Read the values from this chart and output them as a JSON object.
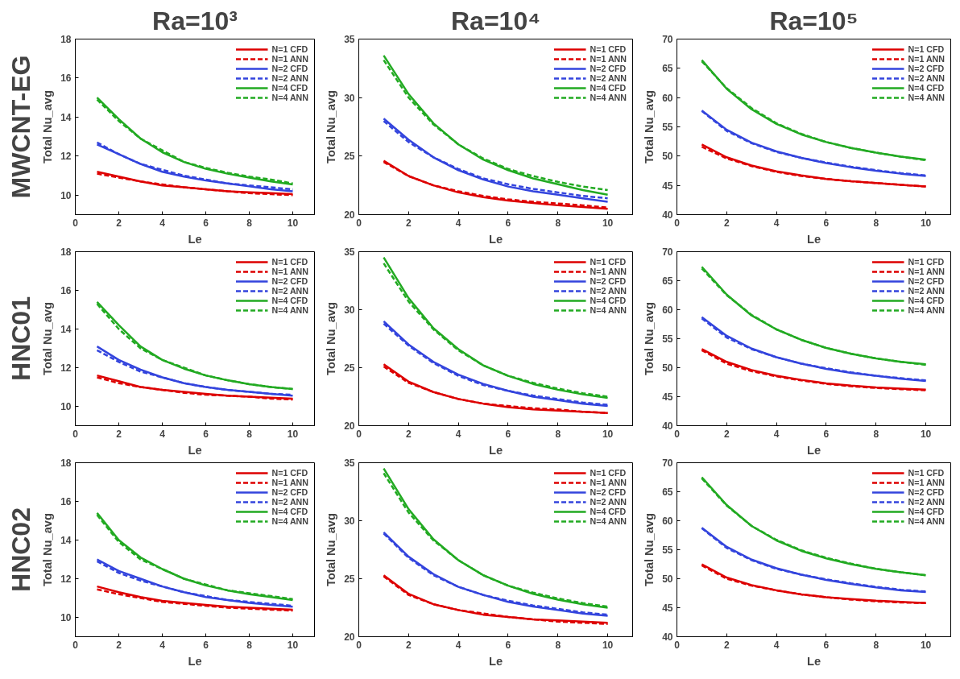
{
  "chart_data": [
    {
      "type": "line",
      "title": "Ra=10³",
      "annotations": [
        "MWCNT-EG"
      ],
      "xlabel": "Le",
      "ylabel": "Total Nu_avg",
      "x": [
        1,
        2,
        3,
        4,
        5,
        6,
        7,
        8,
        9,
        10
      ],
      "xlim": [
        0,
        11
      ],
      "xticks": [
        0,
        2,
        4,
        6,
        8,
        10
      ],
      "ylim": [
        9,
        18
      ],
      "yticks": [
        10,
        12,
        14,
        16,
        18
      ],
      "grid": false,
      "legend": "top right",
      "marker": "none",
      "series": [
        {
          "name": "N=1 CFD",
          "color": "#dd0000",
          "line_style": "solid",
          "values": [
            11.2,
            10.95,
            10.7,
            10.5,
            10.4,
            10.3,
            10.2,
            10.15,
            10.1,
            10.05
          ]
        },
        {
          "name": "N=1 ANN",
          "color": "#dd0000",
          "line_style": "dashed",
          "values": [
            11.1,
            10.9,
            10.7,
            10.55,
            10.4,
            10.3,
            10.2,
            10.1,
            10.05,
            10.0
          ]
        },
        {
          "name": "N=2 CFD",
          "color": "#3344dd",
          "line_style": "solid",
          "values": [
            12.6,
            12.1,
            11.6,
            11.2,
            10.95,
            10.75,
            10.6,
            10.45,
            10.3,
            10.2
          ]
        },
        {
          "name": "N=2 ANN",
          "color": "#3344dd",
          "line_style": "dashed",
          "values": [
            12.7,
            12.1,
            11.6,
            11.3,
            11.0,
            10.8,
            10.6,
            10.5,
            10.4,
            10.3
          ]
        },
        {
          "name": "N=4 CFD",
          "color": "#22aa22",
          "line_style": "solid",
          "values": [
            15.0,
            13.9,
            12.9,
            12.2,
            11.7,
            11.35,
            11.1,
            10.9,
            10.7,
            10.55
          ]
        },
        {
          "name": "N=4 ANN",
          "color": "#22aa22",
          "line_style": "dashed",
          "values": [
            14.9,
            13.8,
            12.9,
            12.3,
            11.7,
            11.4,
            11.15,
            10.95,
            10.8,
            10.6
          ]
        }
      ]
    },
    {
      "type": "line",
      "title": "Ra=10⁴",
      "xlabel": "Le",
      "ylabel": "Total Nu_avg",
      "x": [
        1,
        2,
        3,
        4,
        5,
        6,
        7,
        8,
        9,
        10
      ],
      "xlim": [
        0,
        11
      ],
      "xticks": [
        0,
        2,
        4,
        6,
        8,
        10
      ],
      "ylim": [
        20,
        35
      ],
      "yticks": [
        20,
        25,
        30,
        35
      ],
      "grid": false,
      "legend": "top right",
      "marker": "none",
      "series": [
        {
          "name": "N=1 CFD",
          "color": "#dd0000",
          "line_style": "solid",
          "values": [
            24.6,
            23.3,
            22.5,
            21.9,
            21.5,
            21.2,
            21.0,
            20.8,
            20.65,
            20.5
          ]
        },
        {
          "name": "N=1 ANN",
          "color": "#dd0000",
          "line_style": "dashed",
          "values": [
            24.5,
            23.3,
            22.5,
            22.0,
            21.6,
            21.3,
            21.1,
            20.95,
            20.8,
            20.6
          ]
        },
        {
          "name": "N=2 CFD",
          "color": "#3344dd",
          "line_style": "solid",
          "values": [
            28.2,
            26.4,
            24.9,
            23.8,
            23.0,
            22.4,
            22.0,
            21.7,
            21.4,
            21.1
          ]
        },
        {
          "name": "N=2 ANN",
          "color": "#3344dd",
          "line_style": "dashed",
          "values": [
            28.0,
            26.2,
            24.9,
            23.9,
            23.1,
            22.6,
            22.2,
            21.9,
            21.6,
            21.4
          ]
        },
        {
          "name": "N=4 CFD",
          "color": "#22aa22",
          "line_style": "solid",
          "values": [
            33.6,
            30.3,
            27.8,
            26.0,
            24.7,
            23.8,
            23.1,
            22.6,
            22.1,
            21.7
          ]
        },
        {
          "name": "N=4 ANN",
          "color": "#22aa22",
          "line_style": "dashed",
          "values": [
            33.2,
            30.0,
            27.7,
            26.0,
            24.8,
            23.9,
            23.3,
            22.8,
            22.4,
            22.1
          ]
        }
      ]
    },
    {
      "type": "line",
      "title": "Ra=10⁵",
      "xlabel": "Le",
      "ylabel": "Total Nu_avg",
      "x": [
        1,
        2,
        3,
        4,
        5,
        6,
        7,
        8,
        9,
        10
      ],
      "xlim": [
        0,
        11
      ],
      "xticks": [
        0,
        2,
        4,
        6,
        8,
        10
      ],
      "ylim": [
        40,
        70
      ],
      "yticks": [
        40,
        45,
        50,
        55,
        60,
        65,
        70
      ],
      "grid": false,
      "legend": "top right",
      "marker": "none",
      "series": [
        {
          "name": "N=1 CFD",
          "color": "#dd0000",
          "line_style": "solid",
          "values": [
            52.0,
            49.8,
            48.4,
            47.4,
            46.7,
            46.1,
            45.7,
            45.4,
            45.1,
            44.8
          ]
        },
        {
          "name": "N=1 ANN",
          "color": "#dd0000",
          "line_style": "dashed",
          "values": [
            51.6,
            49.6,
            48.3,
            47.3,
            46.6,
            46.1,
            45.7,
            45.4,
            45.1,
            44.8
          ]
        },
        {
          "name": "N=2 CFD",
          "color": "#3344dd",
          "line_style": "solid",
          "values": [
            57.8,
            54.5,
            52.3,
            50.8,
            49.7,
            48.8,
            48.1,
            47.5,
            47.0,
            46.6
          ]
        },
        {
          "name": "N=2 ANN",
          "color": "#3344dd",
          "line_style": "dashed",
          "values": [
            57.7,
            54.3,
            52.2,
            50.7,
            49.7,
            48.9,
            48.2,
            47.6,
            47.1,
            46.7
          ]
        },
        {
          "name": "N=4 CFD",
          "color": "#22aa22",
          "line_style": "solid",
          "values": [
            66.4,
            61.5,
            58.0,
            55.5,
            53.7,
            52.4,
            51.4,
            50.6,
            49.9,
            49.4
          ]
        },
        {
          "name": "N=4 ANN",
          "color": "#22aa22",
          "line_style": "dashed",
          "values": [
            66.2,
            61.6,
            58.2,
            55.6,
            53.8,
            52.4,
            51.4,
            50.6,
            49.9,
            49.3
          ]
        }
      ]
    },
    {
      "type": "line",
      "annotations": [
        "HNC01"
      ],
      "xlabel": "Le",
      "ylabel": "Total Nu_avg",
      "x": [
        1,
        2,
        3,
        4,
        5,
        6,
        7,
        8,
        9,
        10
      ],
      "xlim": [
        0,
        11
      ],
      "xticks": [
        0,
        2,
        4,
        6,
        8,
        10
      ],
      "ylim": [
        9,
        18
      ],
      "yticks": [
        10,
        12,
        14,
        16,
        18
      ],
      "grid": false,
      "legend": "top right",
      "marker": "none",
      "series": [
        {
          "name": "N=1 CFD",
          "color": "#dd0000",
          "line_style": "solid",
          "values": [
            11.6,
            11.3,
            11.0,
            10.85,
            10.75,
            10.65,
            10.55,
            10.5,
            10.45,
            10.4
          ]
        },
        {
          "name": "N=1 ANN",
          "color": "#dd0000",
          "line_style": "dashed",
          "values": [
            11.5,
            11.2,
            11.0,
            10.85,
            10.7,
            10.6,
            10.55,
            10.5,
            10.4,
            10.35
          ]
        },
        {
          "name": "N=2 CFD",
          "color": "#3344dd",
          "line_style": "solid",
          "values": [
            13.1,
            12.4,
            11.9,
            11.5,
            11.2,
            11.0,
            10.85,
            10.75,
            10.65,
            10.55
          ]
        },
        {
          "name": "N=2 ANN",
          "color": "#3344dd",
          "line_style": "dashed",
          "values": [
            12.9,
            12.3,
            11.8,
            11.5,
            11.2,
            11.0,
            10.85,
            10.75,
            10.65,
            10.6
          ]
        },
        {
          "name": "N=4 CFD",
          "color": "#22aa22",
          "line_style": "solid",
          "values": [
            15.4,
            14.2,
            13.1,
            12.4,
            11.95,
            11.6,
            11.35,
            11.15,
            11.0,
            10.9
          ]
        },
        {
          "name": "N=4 ANN",
          "color": "#22aa22",
          "line_style": "dashed",
          "values": [
            15.3,
            14.0,
            13.0,
            12.4,
            12.0,
            11.6,
            11.35,
            11.15,
            11.0,
            10.9
          ]
        }
      ]
    },
    {
      "type": "line",
      "xlabel": "Le",
      "ylabel": "Total Nu_avg",
      "x": [
        1,
        2,
        3,
        4,
        5,
        6,
        7,
        8,
        9,
        10
      ],
      "xlim": [
        0,
        11
      ],
      "xticks": [
        0,
        2,
        4,
        6,
        8,
        10
      ],
      "ylim": [
        20,
        35
      ],
      "yticks": [
        20,
        25,
        30,
        35
      ],
      "grid": false,
      "legend": "top right",
      "marker": "none",
      "series": [
        {
          "name": "N=1 CFD",
          "color": "#dd0000",
          "line_style": "solid",
          "values": [
            25.3,
            23.8,
            22.9,
            22.3,
            21.9,
            21.6,
            21.4,
            21.3,
            21.2,
            21.1
          ]
        },
        {
          "name": "N=1 ANN",
          "color": "#dd0000",
          "line_style": "dashed",
          "values": [
            25.1,
            23.7,
            22.9,
            22.3,
            21.9,
            21.7,
            21.5,
            21.4,
            21.2,
            21.1
          ]
        },
        {
          "name": "N=2 CFD",
          "color": "#3344dd",
          "line_style": "solid",
          "values": [
            29.0,
            27.0,
            25.5,
            24.4,
            23.6,
            23.0,
            22.5,
            22.2,
            21.9,
            21.7
          ]
        },
        {
          "name": "N=2 ANN",
          "color": "#3344dd",
          "line_style": "dashed",
          "values": [
            28.8,
            26.9,
            25.4,
            24.3,
            23.5,
            23.0,
            22.6,
            22.3,
            22.0,
            21.8
          ]
        },
        {
          "name": "N=4 CFD",
          "color": "#22aa22",
          "line_style": "solid",
          "values": [
            34.5,
            31.0,
            28.4,
            26.6,
            25.2,
            24.3,
            23.6,
            23.1,
            22.7,
            22.4
          ]
        },
        {
          "name": "N=4 ANN",
          "color": "#22aa22",
          "line_style": "dashed",
          "values": [
            34.0,
            30.7,
            28.3,
            26.5,
            25.2,
            24.3,
            23.7,
            23.2,
            22.8,
            22.5
          ]
        }
      ]
    },
    {
      "type": "line",
      "xlabel": "Le",
      "ylabel": "Total Nu_avg",
      "x": [
        1,
        2,
        3,
        4,
        5,
        6,
        7,
        8,
        9,
        10
      ],
      "xlim": [
        0,
        11
      ],
      "xticks": [
        0,
        2,
        4,
        6,
        8,
        10
      ],
      "ylim": [
        40,
        70
      ],
      "yticks": [
        40,
        45,
        50,
        55,
        60,
        65,
        70
      ],
      "grid": false,
      "legend": "top right",
      "marker": "none",
      "series": [
        {
          "name": "N=1 CFD",
          "color": "#dd0000",
          "line_style": "solid",
          "values": [
            53.2,
            51.0,
            49.6,
            48.6,
            47.9,
            47.3,
            46.9,
            46.6,
            46.4,
            46.2
          ]
        },
        {
          "name": "N=1 ANN",
          "color": "#dd0000",
          "line_style": "dashed",
          "values": [
            53.0,
            50.7,
            49.4,
            48.5,
            47.8,
            47.2,
            46.8,
            46.5,
            46.3,
            46.1
          ]
        },
        {
          "name": "N=2 CFD",
          "color": "#3344dd",
          "line_style": "solid",
          "values": [
            58.7,
            55.5,
            53.3,
            51.8,
            50.7,
            49.8,
            49.1,
            48.6,
            48.1,
            47.7
          ]
        },
        {
          "name": "N=2 ANN",
          "color": "#3344dd",
          "line_style": "dashed",
          "values": [
            58.5,
            55.2,
            53.2,
            51.8,
            50.7,
            49.9,
            49.2,
            48.6,
            48.2,
            47.8
          ]
        },
        {
          "name": "N=4 CFD",
          "color": "#22aa22",
          "line_style": "solid",
          "values": [
            67.4,
            62.6,
            59.0,
            56.6,
            54.8,
            53.4,
            52.4,
            51.6,
            51.0,
            50.6
          ]
        },
        {
          "name": "N=4 ANN",
          "color": "#22aa22",
          "line_style": "dashed",
          "values": [
            67.1,
            62.5,
            59.1,
            56.6,
            54.8,
            53.4,
            52.4,
            51.6,
            51.0,
            50.5
          ]
        }
      ]
    },
    {
      "type": "line",
      "annotations": [
        "HNC02"
      ],
      "xlabel": "Le",
      "ylabel": "Total Nu_avg",
      "x": [
        1,
        2,
        3,
        4,
        5,
        6,
        7,
        8,
        9,
        10
      ],
      "xlim": [
        0,
        11
      ],
      "xticks": [
        0,
        2,
        4,
        6,
        8,
        10
      ],
      "ylim": [
        9,
        18
      ],
      "yticks": [
        10,
        12,
        14,
        16,
        18
      ],
      "grid": false,
      "legend": "top right",
      "marker": "none",
      "series": [
        {
          "name": "N=1 CFD",
          "color": "#dd0000",
          "line_style": "solid",
          "values": [
            11.6,
            11.3,
            11.05,
            10.85,
            10.75,
            10.65,
            10.55,
            10.5,
            10.45,
            10.4
          ]
        },
        {
          "name": "N=1 ANN",
          "color": "#dd0000",
          "line_style": "dashed",
          "values": [
            11.45,
            11.2,
            11.0,
            10.8,
            10.7,
            10.6,
            10.5,
            10.45,
            10.4,
            10.35
          ]
        },
        {
          "name": "N=2 CFD",
          "color": "#3344dd",
          "line_style": "solid",
          "values": [
            13.0,
            12.4,
            12.0,
            11.6,
            11.3,
            11.05,
            10.9,
            10.75,
            10.65,
            10.55
          ]
        },
        {
          "name": "N=2 ANN",
          "color": "#3344dd",
          "line_style": "dashed",
          "values": [
            12.9,
            12.3,
            11.9,
            11.6,
            11.3,
            11.1,
            10.9,
            10.8,
            10.7,
            10.6
          ]
        },
        {
          "name": "N=4 CFD",
          "color": "#22aa22",
          "line_style": "solid",
          "values": [
            15.4,
            14.0,
            13.1,
            12.5,
            12.0,
            11.65,
            11.4,
            11.2,
            11.05,
            10.9
          ]
        },
        {
          "name": "N=4 ANN",
          "color": "#22aa22",
          "line_style": "dashed",
          "values": [
            15.3,
            13.9,
            13.0,
            12.5,
            12.0,
            11.7,
            11.4,
            11.25,
            11.1,
            10.95
          ]
        }
      ]
    },
    {
      "type": "line",
      "xlabel": "Le",
      "ylabel": "Total Nu_avg",
      "x": [
        1,
        2,
        3,
        4,
        5,
        6,
        7,
        8,
        9,
        10
      ],
      "xlim": [
        0,
        11
      ],
      "xticks": [
        0,
        2,
        4,
        6,
        8,
        10
      ],
      "ylim": [
        20,
        35
      ],
      "yticks": [
        20,
        25,
        30,
        35
      ],
      "grid": false,
      "legend": "top right",
      "marker": "none",
      "series": [
        {
          "name": "N=1 CFD",
          "color": "#dd0000",
          "line_style": "solid",
          "values": [
            25.3,
            23.7,
            22.8,
            22.3,
            21.9,
            21.7,
            21.5,
            21.4,
            21.3,
            21.2
          ]
        },
        {
          "name": "N=1 ANN",
          "color": "#dd0000",
          "line_style": "dashed",
          "values": [
            25.2,
            23.6,
            22.8,
            22.3,
            22.0,
            21.7,
            21.5,
            21.3,
            21.2,
            21.1
          ]
        },
        {
          "name": "N=2 CFD",
          "color": "#3344dd",
          "line_style": "solid",
          "values": [
            29.0,
            26.9,
            25.4,
            24.3,
            23.6,
            23.0,
            22.6,
            22.3,
            22.0,
            21.8
          ]
        },
        {
          "name": "N=2 ANN",
          "color": "#3344dd",
          "line_style": "dashed",
          "values": [
            28.9,
            26.8,
            25.3,
            24.3,
            23.6,
            23.1,
            22.7,
            22.4,
            22.1,
            21.9
          ]
        },
        {
          "name": "N=4 CFD",
          "color": "#22aa22",
          "line_style": "solid",
          "values": [
            34.5,
            31.0,
            28.4,
            26.6,
            25.3,
            24.4,
            23.7,
            23.2,
            22.8,
            22.5
          ]
        },
        {
          "name": "N=4 ANN",
          "color": "#22aa22",
          "line_style": "dashed",
          "values": [
            34.1,
            30.7,
            28.3,
            26.6,
            25.3,
            24.4,
            23.8,
            23.3,
            22.9,
            22.6
          ]
        }
      ]
    },
    {
      "type": "line",
      "xlabel": "Le",
      "ylabel": "Total Nu_avg",
      "x": [
        1,
        2,
        3,
        4,
        5,
        6,
        7,
        8,
        9,
        10
      ],
      "xlim": [
        0,
        11
      ],
      "xticks": [
        0,
        2,
        4,
        6,
        8,
        10
      ],
      "ylim": [
        40,
        70
      ],
      "yticks": [
        40,
        45,
        50,
        55,
        60,
        65,
        70
      ],
      "grid": false,
      "legend": "top right",
      "marker": "none",
      "series": [
        {
          "name": "N=1 CFD",
          "color": "#dd0000",
          "line_style": "solid",
          "values": [
            52.5,
            50.2,
            48.9,
            48.0,
            47.3,
            46.8,
            46.5,
            46.2,
            46.0,
            45.8
          ]
        },
        {
          "name": "N=1 ANN",
          "color": "#dd0000",
          "line_style": "dashed",
          "values": [
            52.3,
            50.0,
            48.8,
            48.0,
            47.3,
            46.8,
            46.4,
            46.1,
            45.9,
            45.8
          ]
        },
        {
          "name": "N=2 CFD",
          "color": "#3344dd",
          "line_style": "solid",
          "values": [
            58.8,
            55.5,
            53.3,
            51.8,
            50.7,
            49.8,
            49.1,
            48.5,
            48.0,
            47.7
          ]
        },
        {
          "name": "N=2 ANN",
          "color": "#3344dd",
          "line_style": "dashed",
          "values": [
            58.7,
            55.3,
            53.2,
            51.7,
            50.7,
            49.9,
            49.2,
            48.6,
            48.1,
            47.8
          ]
        },
        {
          "name": "N=4 CFD",
          "color": "#22aa22",
          "line_style": "solid",
          "values": [
            67.5,
            62.7,
            59.1,
            56.6,
            54.8,
            53.5,
            52.5,
            51.7,
            51.1,
            50.6
          ]
        },
        {
          "name": "N=4 ANN",
          "color": "#22aa22",
          "line_style": "dashed",
          "values": [
            67.3,
            62.6,
            59.1,
            56.7,
            54.9,
            53.6,
            52.6,
            51.7,
            51.1,
            50.6
          ]
        }
      ]
    }
  ]
}
